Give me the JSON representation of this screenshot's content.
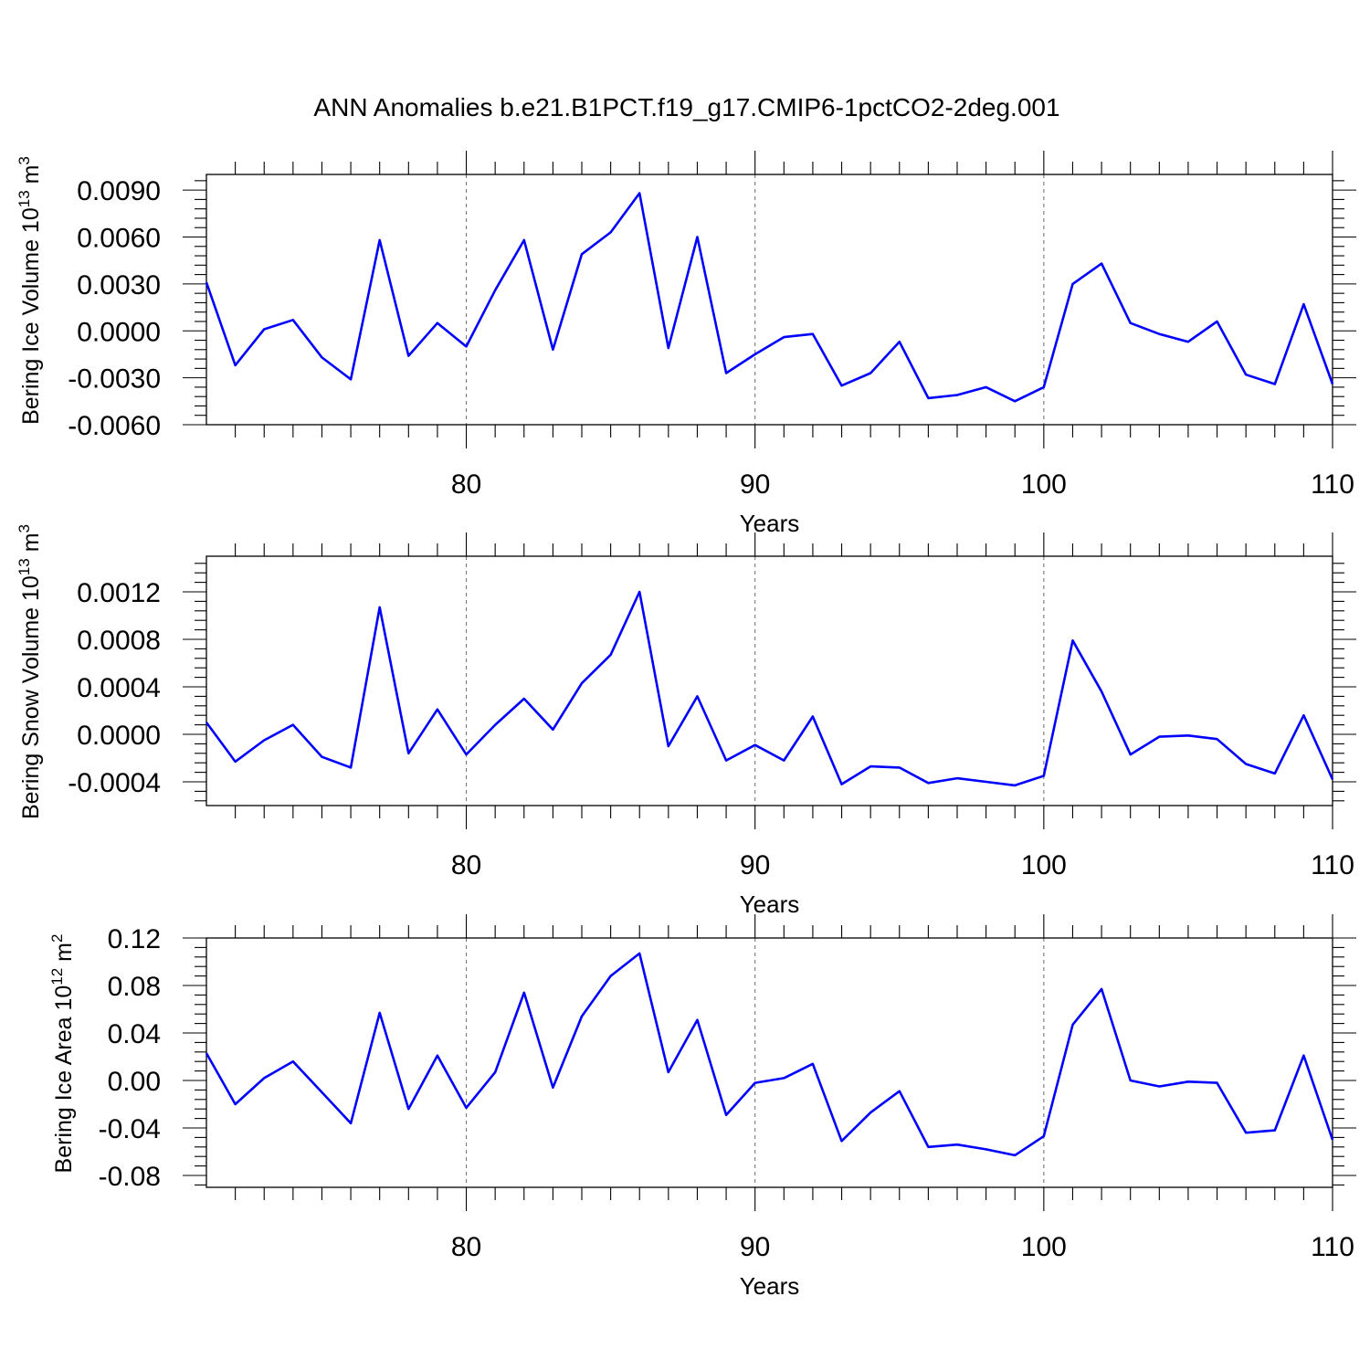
{
  "title": "ANN Anomalies b.e21.B1PCT.f19_g17.CMIP6-1pctCO2-2deg.001",
  "colors": {
    "series": "#0000ff",
    "grid": "#777777",
    "axis": "#000000"
  },
  "chart_data": [
    {
      "type": "line",
      "ylabel": "Bering Ice Volume 10",
      "ylabel_exp": "13",
      "ylabel_unit": " m",
      "ylabel_unit_exp": "3",
      "xlabel": "Years",
      "xlim": [
        71,
        110
      ],
      "ylim": [
        -0.006,
        0.01
      ],
      "yticks": [
        -0.006,
        -0.003,
        0.0,
        0.003,
        0.006,
        0.009
      ],
      "ytick_labels": [
        "-0.0060",
        "-0.0030",
        "0.0000",
        "0.0030",
        "0.0060",
        "0.0090"
      ],
      "xticks": [
        80,
        90,
        100,
        110
      ],
      "xtick_labels": [
        "80",
        "90",
        "100",
        "110"
      ],
      "grid": "vertical dashed at major x ticks",
      "x": [
        71,
        72,
        73,
        74,
        75,
        76,
        77,
        78,
        79,
        80,
        81,
        82,
        83,
        84,
        85,
        86,
        87,
        88,
        89,
        90,
        91,
        92,
        93,
        94,
        95,
        96,
        97,
        98,
        99,
        100,
        101,
        102,
        103,
        104,
        105,
        106,
        107,
        108,
        109,
        110
      ],
      "y": [
        0.0031,
        -0.0022,
        0.0001,
        0.0007,
        -0.0017,
        -0.0031,
        0.0058,
        -0.0016,
        0.0005,
        -0.001,
        0.0026,
        0.0058,
        -0.0012,
        0.0049,
        0.0063,
        0.0088,
        -0.0011,
        0.006,
        -0.0027,
        -0.0015,
        -0.0004,
        -0.0002,
        -0.0035,
        -0.0027,
        -0.0007,
        -0.0043,
        -0.0041,
        -0.0036,
        -0.0045,
        -0.0036,
        0.003,
        0.0043,
        0.0005,
        -0.0002,
        -0.0007,
        0.0006,
        -0.0028,
        -0.0034,
        0.0017,
        -0.0034
      ]
    },
    {
      "type": "line",
      "ylabel": "Bering Snow Volume 10",
      "ylabel_exp": "13",
      "ylabel_unit": " m",
      "ylabel_unit_exp": "3",
      "xlabel": "Years",
      "xlim": [
        71,
        110
      ],
      "ylim": [
        -0.0006,
        0.0015
      ],
      "yticks": [
        -0.0004,
        0.0,
        0.0004,
        0.0008,
        0.0012
      ],
      "ytick_labels": [
        "-0.0004",
        "0.0000",
        "0.0004",
        "0.0008",
        "0.0012"
      ],
      "xticks": [
        80,
        90,
        100,
        110
      ],
      "xtick_labels": [
        "80",
        "90",
        "100",
        "110"
      ],
      "grid": "vertical dashed at major x ticks",
      "x": [
        71,
        72,
        73,
        74,
        75,
        76,
        77,
        78,
        79,
        80,
        81,
        82,
        83,
        84,
        85,
        86,
        87,
        88,
        89,
        90,
        91,
        92,
        93,
        94,
        95,
        96,
        97,
        98,
        99,
        100,
        101,
        102,
        103,
        104,
        105,
        106,
        107,
        108,
        109,
        110
      ],
      "y": [
        0.0001,
        -0.00023,
        -5e-05,
        8e-05,
        -0.00019,
        -0.00028,
        0.00107,
        -0.00016,
        0.00021,
        -0.00017,
        8e-05,
        0.0003,
        4e-05,
        0.00043,
        0.00067,
        0.0012,
        -0.0001,
        0.00032,
        -0.00022,
        -9e-05,
        -0.00022,
        0.00015,
        -0.00042,
        -0.00027,
        -0.00028,
        -0.00041,
        -0.00037,
        -0.0004,
        -0.00043,
        -0.00035,
        0.00079,
        0.00036,
        -0.00017,
        -2e-05,
        -1e-05,
        -4e-05,
        -0.00025,
        -0.00033,
        0.00016,
        -0.00038
      ]
    },
    {
      "type": "line",
      "ylabel": "Bering Ice Area 10",
      "ylabel_exp": "12",
      "ylabel_unit": " m",
      "ylabel_unit_exp": "2",
      "xlabel": "Years",
      "xlim": [
        71,
        110
      ],
      "ylim": [
        -0.09,
        0.12
      ],
      "yticks": [
        -0.08,
        -0.04,
        0.0,
        0.04,
        0.08,
        0.12
      ],
      "ytick_labels": [
        "-0.08",
        "-0.04",
        "0.00",
        "0.04",
        "0.08",
        "0.12"
      ],
      "xticks": [
        80,
        90,
        100,
        110
      ],
      "xtick_labels": [
        "80",
        "90",
        "100",
        "110"
      ],
      "grid": "vertical dashed at major x ticks",
      "x": [
        71,
        72,
        73,
        74,
        75,
        76,
        77,
        78,
        79,
        80,
        81,
        82,
        83,
        84,
        85,
        86,
        87,
        88,
        89,
        90,
        91,
        92,
        93,
        94,
        95,
        96,
        97,
        98,
        99,
        100,
        101,
        102,
        103,
        104,
        105,
        106,
        107,
        108,
        109,
        110
      ],
      "y": [
        0.023,
        -0.02,
        0.002,
        0.016,
        -0.01,
        -0.036,
        0.057,
        -0.024,
        0.021,
        -0.023,
        0.007,
        0.074,
        -0.006,
        0.054,
        0.088,
        0.107,
        0.007,
        0.051,
        -0.029,
        -0.002,
        0.002,
        0.014,
        -0.051,
        -0.027,
        -0.009,
        -0.056,
        -0.054,
        -0.058,
        -0.063,
        -0.047,
        0.047,
        0.077,
        0.0,
        -0.005,
        -0.001,
        -0.002,
        -0.044,
        -0.042,
        0.021,
        -0.05
      ]
    }
  ]
}
